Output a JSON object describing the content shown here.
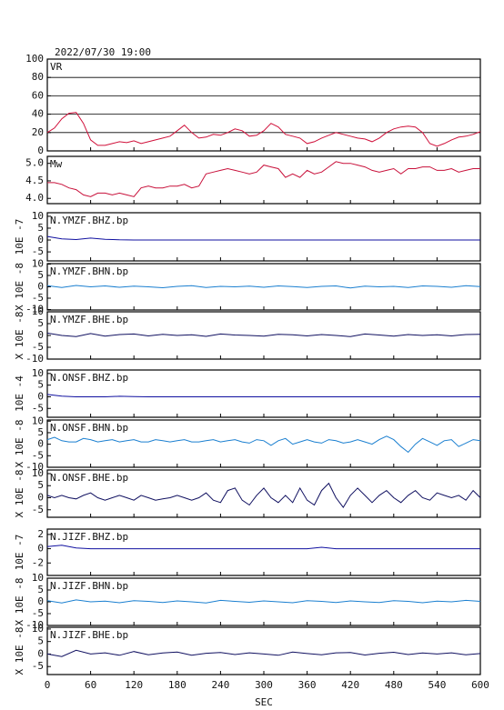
{
  "chart_data": [
    {
      "type": "line",
      "title": "2022/07/30 19:00",
      "x": [
        0,
        10,
        20,
        30,
        40,
        50,
        60,
        70,
        80,
        90,
        100,
        110,
        120,
        130,
        140,
        150,
        160,
        170,
        180,
        190,
        200,
        210,
        220,
        230,
        240,
        250,
        260,
        270,
        280,
        290,
        300,
        310,
        320,
        330,
        340,
        350,
        360,
        370,
        380,
        390,
        400,
        410,
        420,
        430,
        440,
        450,
        460,
        470,
        480,
        490,
        500,
        510,
        520,
        530,
        540,
        550,
        560,
        570,
        580,
        590,
        600
      ],
      "series": [
        {
          "name": "VR",
          "color": "#d0103a",
          "values": [
            20,
            25,
            35,
            41,
            42,
            30,
            12,
            6,
            6,
            8,
            10,
            9,
            11,
            8,
            10,
            12,
            14,
            16,
            22,
            28,
            20,
            14,
            15,
            18,
            17,
            20,
            24,
            22,
            16,
            17,
            22,
            30,
            26,
            18,
            16,
            14,
            8,
            10,
            14,
            17,
            20,
            18,
            16,
            14,
            13,
            10,
            14,
            20,
            24,
            26,
            27,
            26,
            20,
            8,
            5,
            8,
            12,
            15,
            16,
            18,
            21
          ]
        }
      ],
      "ylim": [
        0,
        100
      ],
      "yticks": [
        0,
        20,
        40,
        60,
        80,
        100
      ],
      "grid": true
    },
    {
      "type": "line",
      "x": [
        0,
        10,
        20,
        30,
        40,
        50,
        60,
        70,
        80,
        90,
        100,
        110,
        120,
        130,
        140,
        150,
        160,
        170,
        180,
        190,
        200,
        210,
        220,
        230,
        240,
        250,
        260,
        270,
        280,
        290,
        300,
        310,
        320,
        330,
        340,
        350,
        360,
        370,
        380,
        390,
        400,
        410,
        420,
        430,
        440,
        450,
        460,
        470,
        480,
        490,
        500,
        510,
        520,
        530,
        540,
        550,
        560,
        570,
        580,
        590,
        600
      ],
      "series": [
        {
          "name": "Mw",
          "color": "#c8103a",
          "values": [
            4.45,
            4.45,
            4.4,
            4.3,
            4.25,
            4.1,
            4.05,
            4.15,
            4.15,
            4.1,
            4.15,
            4.1,
            4.05,
            4.3,
            4.35,
            4.3,
            4.3,
            4.35,
            4.35,
            4.4,
            4.3,
            4.35,
            4.7,
            4.75,
            4.8,
            4.85,
            4.8,
            4.75,
            4.7,
            4.75,
            4.95,
            4.9,
            4.85,
            4.6,
            4.7,
            4.6,
            4.8,
            4.7,
            4.75,
            4.9,
            5.05,
            5.0,
            5.0,
            4.95,
            4.9,
            4.8,
            4.75,
            4.8,
            4.85,
            4.7,
            4.85,
            4.85,
            4.9,
            4.9,
            4.8,
            4.8,
            4.85,
            4.75,
            4.8,
            4.85,
            4.85
          ]
        }
      ],
      "ylim": [
        3.85,
        5.2
      ],
      "yticks": [
        {
          "value": 4,
          "label": "4.0"
        },
        4.5,
        {
          "value": 5,
          "label": "5.0"
        }
      ]
    },
    {
      "type": "line",
      "ylabel": "10E -7",
      "x": [
        0,
        20,
        40,
        60,
        80,
        100,
        120,
        140,
        160,
        180,
        200,
        220,
        240,
        260,
        280,
        300,
        320,
        340,
        360,
        380,
        400,
        420,
        440,
        460,
        480,
        500,
        520,
        540,
        560,
        580,
        600
      ],
      "series": [
        {
          "name": "N.YMZF.BHZ.bp",
          "color": "#1010a0",
          "values": [
            1.5,
            0.5,
            0.2,
            0.8,
            0.3,
            0.1,
            0,
            0,
            0,
            0,
            0,
            0,
            0,
            0,
            0,
            0,
            0,
            0,
            0,
            0,
            0,
            0,
            0,
            0,
            0,
            0,
            0,
            0,
            0,
            0,
            0
          ]
        }
      ],
      "ylim": [
        -8.8,
        11.5
      ],
      "yticks": [
        10,
        5,
        0,
        -5
      ]
    },
    {
      "type": "line",
      "ylabel": "X 10E -8",
      "x": [
        0,
        20,
        40,
        60,
        80,
        100,
        120,
        140,
        160,
        180,
        200,
        220,
        240,
        260,
        280,
        300,
        320,
        340,
        360,
        380,
        400,
        420,
        440,
        460,
        480,
        500,
        520,
        540,
        560,
        580,
        600
      ],
      "series": [
        {
          "name": "N.YMZF.BHN.bp",
          "color": "#1a7fd0",
          "values": [
            0.5,
            -0.3,
            0.6,
            0,
            0.4,
            -0.2,
            0.3,
            0,
            -0.4,
            0.2,
            0.5,
            -0.3,
            0.2,
            0,
            0.3,
            -0.2,
            0.4,
            0.1,
            -0.3,
            0.2,
            0.4,
            -0.5,
            0.3,
            0,
            0.2,
            -0.3,
            0.4,
            0.2,
            -0.2,
            0.5,
            0.1
          ]
        }
      ],
      "ylim": [
        -10.2,
        10.2
      ],
      "yticks": [
        10,
        5,
        0,
        -5,
        -10
      ]
    },
    {
      "type": "line",
      "ylabel": "X 10E -8",
      "x": [
        0,
        20,
        40,
        60,
        80,
        100,
        120,
        140,
        160,
        180,
        200,
        220,
        240,
        260,
        280,
        300,
        320,
        340,
        360,
        380,
        400,
        420,
        440,
        460,
        480,
        500,
        520,
        540,
        560,
        580,
        600
      ],
      "series": [
        {
          "name": "N.YMZF.BHE.bp",
          "color": "#101060",
          "values": [
            1,
            0,
            -0.5,
            0.8,
            -0.3,
            0.4,
            0.6,
            -0.2,
            0.5,
            0,
            0.3,
            -0.4,
            0.6,
            0.2,
            0,
            -0.3,
            0.5,
            0.3,
            -0.2,
            0.4,
            0,
            -0.5,
            0.6,
            0.2,
            -0.3,
            0.4,
            0,
            0.3,
            -0.2,
            0.4,
            0.5
          ]
        }
      ],
      "ylim": [
        -10,
        10
      ],
      "yticks": [
        10,
        5,
        0,
        -5,
        -10
      ]
    },
    {
      "type": "line",
      "ylabel": "10E -4",
      "x": [
        0,
        20,
        40,
        60,
        80,
        100,
        120,
        140,
        160,
        180,
        200,
        220,
        240,
        260,
        280,
        300,
        320,
        340,
        360,
        380,
        400,
        420,
        440,
        460,
        480,
        500,
        520,
        540,
        560,
        580,
        600
      ],
      "series": [
        {
          "name": "N.ONSF.BHZ.bp",
          "color": "#1010a0",
          "values": [
            1,
            0.3,
            0,
            0,
            0,
            0.2,
            0.1,
            0,
            0,
            0,
            0,
            0,
            0,
            0,
            0,
            0,
            0,
            0,
            0,
            0,
            0,
            0,
            0,
            0,
            0,
            0,
            0,
            0,
            0,
            0,
            0
          ]
        }
      ],
      "ylim": [
        -8.8,
        11.5
      ],
      "yticks": [
        10,
        5,
        0,
        -5
      ]
    },
    {
      "type": "line",
      "ylabel": "X 10E -8",
      "x": [
        0,
        10,
        20,
        30,
        40,
        50,
        60,
        70,
        80,
        90,
        100,
        110,
        120,
        130,
        140,
        150,
        160,
        170,
        180,
        190,
        200,
        210,
        220,
        230,
        240,
        250,
        260,
        270,
        280,
        290,
        300,
        310,
        320,
        330,
        340,
        350,
        360,
        370,
        380,
        390,
        400,
        410,
        420,
        430,
        440,
        450,
        460,
        470,
        480,
        490,
        500,
        510,
        520,
        530,
        540,
        550,
        560,
        570,
        580,
        590,
        600
      ],
      "series": [
        {
          "name": "N.ONSF.BHN.bp",
          "color": "#1a7fd0",
          "values": [
            2,
            3,
            1.5,
            1,
            1,
            2.5,
            2,
            1,
            1.5,
            2,
            1,
            1.5,
            2,
            1,
            1,
            2,
            1.5,
            1,
            1.5,
            2,
            1,
            1,
            1.5,
            2,
            1,
            1.5,
            2,
            1,
            0.5,
            2,
            1.5,
            -0.5,
            1.5,
            2.5,
            0,
            1,
            2,
            1,
            0.5,
            2,
            1.5,
            0.5,
            1,
            2,
            1,
            0,
            2,
            3.5,
            2,
            -1,
            -3.5,
            0,
            2.5,
            1,
            -0.5,
            1.5,
            2,
            -1,
            0.5,
            2,
            1.5
          ]
        }
      ],
      "ylim": [
        -10,
        10.5
      ],
      "yticks": [
        10,
        5,
        0,
        -5,
        -10
      ]
    },
    {
      "type": "line",
      "ylabel": "X 10E -8",
      "x": [
        0,
        10,
        20,
        30,
        40,
        50,
        60,
        70,
        80,
        90,
        100,
        110,
        120,
        130,
        140,
        150,
        160,
        170,
        180,
        190,
        200,
        210,
        220,
        230,
        240,
        250,
        260,
        270,
        280,
        290,
        300,
        310,
        320,
        330,
        340,
        350,
        360,
        370,
        380,
        390,
        400,
        410,
        420,
        430,
        440,
        450,
        460,
        470,
        480,
        490,
        500,
        510,
        520,
        530,
        540,
        550,
        560,
        570,
        580,
        590,
        600
      ],
      "series": [
        {
          "name": "N.ONSF.BHE.bp",
          "color": "#101060",
          "values": [
            1,
            0,
            1,
            0,
            -0.5,
            1,
            2,
            0,
            -1,
            0,
            1,
            0,
            -1,
            1,
            0,
            -1,
            -0.5,
            0,
            1,
            0,
            -1,
            0,
            2,
            -1,
            -2,
            3,
            4,
            -1,
            -3,
            1,
            4,
            0,
            -2,
            1,
            -2,
            4,
            -1,
            -3,
            3,
            6,
            0,
            -4,
            1,
            4,
            1,
            -2,
            1,
            3,
            0,
            -2,
            1,
            3,
            0,
            -1,
            2,
            1,
            0,
            1,
            -1,
            3,
            0
          ]
        }
      ],
      "ylim": [
        -8.1,
        11.5
      ],
      "yticks": [
        10,
        5,
        0,
        -5
      ]
    },
    {
      "type": "line",
      "ylabel": "10E -7",
      "x": [
        0,
        20,
        40,
        60,
        80,
        100,
        120,
        140,
        160,
        180,
        200,
        220,
        240,
        260,
        280,
        300,
        320,
        340,
        360,
        380,
        400,
        420,
        440,
        460,
        480,
        500,
        520,
        540,
        560,
        580,
        600
      ],
      "series": [
        {
          "name": "N.JIZF.BHZ.bp",
          "color": "#1010a0",
          "values": [
            0.3,
            0.5,
            0.1,
            0,
            0,
            0,
            0,
            0,
            0,
            0,
            0,
            0,
            0,
            0,
            0,
            0,
            0,
            0,
            0,
            0.2,
            0,
            0,
            0,
            0,
            0,
            0,
            0,
            0,
            0,
            0,
            0
          ]
        }
      ],
      "ylim": [
        -3.75,
        2.75
      ],
      "yticks": [
        2,
        0,
        -2
      ]
    },
    {
      "type": "line",
      "ylabel": "X 10E -8",
      "x": [
        0,
        20,
        40,
        60,
        80,
        100,
        120,
        140,
        160,
        180,
        200,
        220,
        240,
        260,
        280,
        300,
        320,
        340,
        360,
        380,
        400,
        420,
        440,
        460,
        480,
        500,
        520,
        540,
        560,
        580,
        600
      ],
      "series": [
        {
          "name": "N.JIZF.BHN.bp",
          "color": "#1a7fd0",
          "values": [
            0.5,
            -0.5,
            0.8,
            0,
            0.3,
            -0.4,
            0.5,
            0.2,
            -0.3,
            0.4,
            0,
            -0.5,
            0.6,
            0.2,
            -0.2,
            0.4,
            0,
            -0.4,
            0.5,
            0.2,
            -0.3,
            0.4,
            0,
            -0.3,
            0.5,
            0.2,
            -0.4,
            0.3,
            0,
            0.6,
            0.2
          ]
        }
      ],
      "ylim": [
        -10,
        10
      ],
      "yticks": [
        10,
        5,
        0,
        -5,
        -10
      ]
    },
    {
      "type": "line",
      "ylabel": "X 10E -8",
      "xlabel": "SEC",
      "xlim": [
        0,
        600
      ],
      "xticks": [
        0,
        60,
        120,
        180,
        240,
        300,
        360,
        420,
        480,
        540,
        600
      ],
      "x": [
        0,
        20,
        40,
        60,
        80,
        100,
        120,
        140,
        160,
        180,
        200,
        220,
        240,
        260,
        280,
        300,
        320,
        340,
        360,
        380,
        400,
        420,
        440,
        460,
        480,
        500,
        520,
        540,
        560,
        580,
        600
      ],
      "series": [
        {
          "name": "N.JIZF.BHE.bp",
          "color": "#101060",
          "values": [
            0,
            -1,
            1.5,
            0,
            0.5,
            -0.5,
            1,
            -0.3,
            0.4,
            0.8,
            -0.5,
            0.3,
            0.6,
            -0.2,
            0.5,
            0,
            -0.5,
            0.8,
            0.2,
            -0.3,
            0.5,
            0.6,
            -0.4,
            0.3,
            0.7,
            -0.2,
            0.4,
            0,
            0.5,
            -0.3,
            0.2
          ]
        }
      ],
      "ylim": [
        -8.2,
        10.7
      ],
      "yticks": [
        10,
        5,
        0,
        -5
      ]
    }
  ]
}
